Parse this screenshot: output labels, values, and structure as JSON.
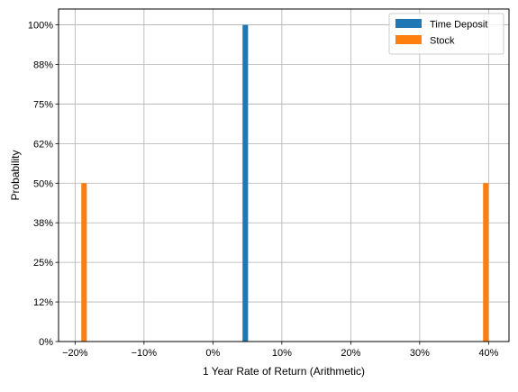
{
  "chart_data": {
    "type": "bar",
    "xlabel": "1 Year Rate of Return (Arithmetic)",
    "ylabel": "Probability",
    "xlim": [
      -0.224,
      0.4296
    ],
    "ylim": [
      0,
      1.05
    ],
    "xticks": [
      {
        "value": -0.2,
        "label": "−20%"
      },
      {
        "value": -0.1,
        "label": "−10%"
      },
      {
        "value": 0.0,
        "label": "0%"
      },
      {
        "value": 0.1,
        "label": "10%"
      },
      {
        "value": 0.2,
        "label": "20%"
      },
      {
        "value": 0.3,
        "label": "30%"
      },
      {
        "value": 0.4,
        "label": "40%"
      }
    ],
    "yticks": [
      {
        "value": 0.0,
        "label": "0%"
      },
      {
        "value": 0.125,
        "label": "12%"
      },
      {
        "value": 0.25,
        "label": "25%"
      },
      {
        "value": 0.375,
        "label": "38%"
      },
      {
        "value": 0.5,
        "label": "50%"
      },
      {
        "value": 0.625,
        "label": "62%"
      },
      {
        "value": 0.75,
        "label": "75%"
      },
      {
        "value": 0.875,
        "label": "88%"
      },
      {
        "value": 1.0,
        "label": "100%"
      }
    ],
    "grid": true,
    "legend_position": "top-right",
    "bar_width": 0.008,
    "series": [
      {
        "name": "Time Deposit",
        "color": "#1f77b4",
        "points": [
          {
            "x": 0.047,
            "y": 1.0
          }
        ]
      },
      {
        "name": "Stock",
        "color": "#ff7f0e",
        "points": [
          {
            "x": -0.187,
            "y": 0.5
          },
          {
            "x": 0.396,
            "y": 0.5
          }
        ]
      }
    ]
  }
}
